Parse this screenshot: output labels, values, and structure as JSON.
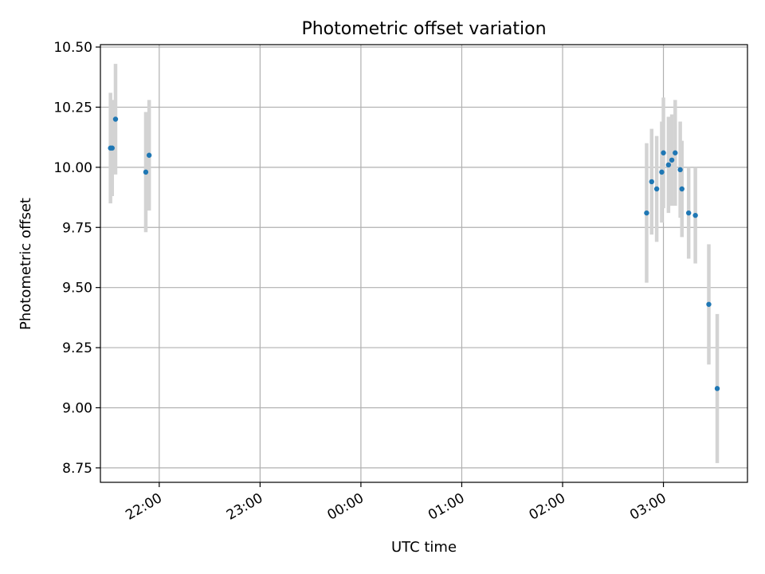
{
  "chart_data": {
    "type": "scatter",
    "title": "Photometric offset variation",
    "xlabel": "UTC time",
    "ylabel": "Photometric offset",
    "x_is_time": true,
    "xlim": [
      "21:25",
      "03:50"
    ],
    "ylim": [
      8.69,
      10.51
    ],
    "xticks": [
      "22:00",
      "23:00",
      "00:00",
      "01:00",
      "02:00",
      "03:00"
    ],
    "yticks": [
      8.75,
      9.0,
      9.25,
      9.5,
      9.75,
      10.0,
      10.25,
      10.5
    ],
    "ytick_labels": [
      "8.75",
      "9.00",
      "9.25",
      "9.50",
      "9.75",
      "10.00",
      "10.25",
      "10.50"
    ],
    "grid": true,
    "colors": {
      "points": "#1f77b4",
      "errorbars": "#d3d3d3",
      "grid": "#b0b0b0"
    },
    "series": [
      {
        "points": [
          {
            "t": "21:31",
            "y": 10.08,
            "err": 0.23
          },
          {
            "t": "21:32",
            "y": 10.08,
            "err": 0.2
          },
          {
            "t": "21:34",
            "y": 10.2,
            "err": 0.23
          },
          {
            "t": "21:52",
            "y": 9.98,
            "err": 0.25
          },
          {
            "t": "21:54",
            "y": 10.05,
            "err": 0.23
          },
          {
            "t": "02:50",
            "y": 9.81,
            "err": 0.29
          },
          {
            "t": "02:53",
            "y": 9.94,
            "err": 0.22
          },
          {
            "t": "02:56",
            "y": 9.91,
            "err": 0.22
          },
          {
            "t": "02:59",
            "y": 9.98,
            "err": 0.21
          },
          {
            "t": "03:00",
            "y": 10.06,
            "err": 0.23
          },
          {
            "t": "03:03",
            "y": 10.01,
            "err": 0.2
          },
          {
            "t": "03:05",
            "y": 10.03,
            "err": 0.19
          },
          {
            "t": "03:07",
            "y": 10.06,
            "err": 0.22
          },
          {
            "t": "03:10",
            "y": 9.99,
            "err": 0.2
          },
          {
            "t": "03:11",
            "y": 9.91,
            "err": 0.2
          },
          {
            "t": "03:15",
            "y": 9.81,
            "err": 0.19
          },
          {
            "t": "03:19",
            "y": 9.8,
            "err": 0.2
          },
          {
            "t": "03:27",
            "y": 9.43,
            "err": 0.25
          },
          {
            "t": "03:32",
            "y": 9.08,
            "err": 0.31
          }
        ]
      }
    ]
  }
}
